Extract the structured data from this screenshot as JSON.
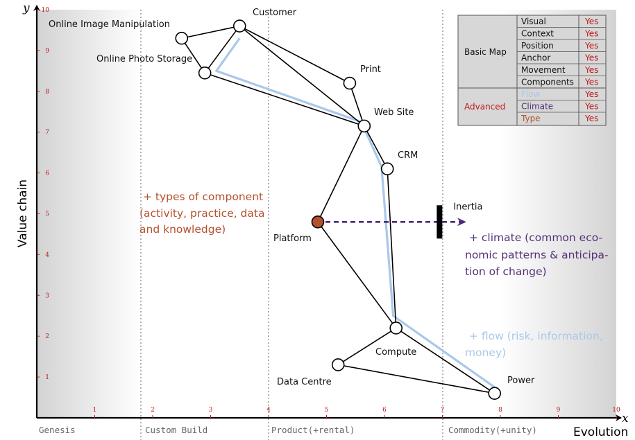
{
  "axes": {
    "y_symbol": "y",
    "x_symbol": "x",
    "y_title": "Value chain",
    "x_title": "Evolution",
    "x_ticks": [
      "1",
      "2",
      "3",
      "4",
      "5",
      "6",
      "7",
      "8",
      "9",
      "10"
    ],
    "y_ticks": [
      "1",
      "2",
      "3",
      "4",
      "5",
      "6",
      "7",
      "8",
      "9",
      "10"
    ]
  },
  "stages": [
    "Genesis",
    "Custom Build",
    "Product(+rental)",
    "Commodity(+unity)"
  ],
  "nodes": [
    {
      "id": "customer",
      "label": "Customer",
      "x": 3.5,
      "y": 9.6
    },
    {
      "id": "online_image_manipulation",
      "label": "Online Image Manipulation",
      "x": 2.5,
      "y": 9.3
    },
    {
      "id": "online_photo_storage",
      "label": "Online Photo Storage",
      "x": 2.9,
      "y": 8.45
    },
    {
      "id": "print",
      "label": "Print",
      "x": 5.4,
      "y": 8.2
    },
    {
      "id": "web_site",
      "label": "Web Site",
      "x": 5.65,
      "y": 7.15
    },
    {
      "id": "crm",
      "label": "CRM",
      "x": 6.05,
      "y": 6.1
    },
    {
      "id": "platform",
      "label": "Platform",
      "x": 4.85,
      "y": 4.8,
      "highlight": true
    },
    {
      "id": "compute",
      "label": "Compute",
      "x": 6.2,
      "y": 2.2
    },
    {
      "id": "data_centre",
      "label": "Data Centre",
      "x": 5.2,
      "y": 1.3
    },
    {
      "id": "power",
      "label": "Power",
      "x": 7.9,
      "y": 0.6
    }
  ],
  "links": [
    [
      "customer",
      "online_image_manipulation"
    ],
    [
      "customer",
      "online_photo_storage"
    ],
    [
      "online_image_manipulation",
      "online_photo_storage"
    ],
    [
      "customer",
      "print"
    ],
    [
      "customer",
      "web_site"
    ],
    [
      "online_photo_storage",
      "web_site"
    ],
    [
      "print",
      "web_site"
    ],
    [
      "web_site",
      "crm"
    ],
    [
      "web_site",
      "platform"
    ],
    [
      "platform",
      "compute"
    ],
    [
      "crm",
      "compute"
    ],
    [
      "compute",
      "power"
    ],
    [
      "compute",
      "data_centre"
    ],
    [
      "data_centre",
      "power"
    ]
  ],
  "flow_path": [
    [
      3.5,
      9.3
    ],
    [
      3.1,
      8.5
    ],
    [
      5.6,
      7.25
    ],
    [
      5.95,
      6.15
    ],
    [
      6.15,
      2.5
    ],
    [
      7.9,
      0.75
    ]
  ],
  "inertia": {
    "label": "Inertia",
    "x": 6.95,
    "y": 4.8
  },
  "movement": {
    "from": "platform",
    "to_x": 7.4,
    "y": 4.8
  },
  "annotations": {
    "types": [
      "+ types of component",
      "(activity, practice, data",
      "and knowledge)"
    ],
    "climate": [
      "+ climate (common eco-",
      "nomic patterns & anticipa-",
      "tion of change)"
    ],
    "flow": [
      "+ flow (risk, information,",
      "money)"
    ]
  },
  "legend_table": {
    "groups": [
      {
        "name": "Basic Map",
        "rows": [
          {
            "feature": "Visual",
            "value": "Yes"
          },
          {
            "feature": "Context",
            "value": "Yes"
          },
          {
            "feature": "Position",
            "value": "Yes"
          },
          {
            "feature": "Anchor",
            "value": "Yes"
          },
          {
            "feature": "Movement",
            "value": "Yes"
          },
          {
            "feature": "Components",
            "value": "Yes"
          }
        ]
      },
      {
        "name": "Advanced",
        "rows": [
          {
            "feature": "Flow",
            "value": "Yes"
          },
          {
            "feature": "Climate",
            "value": "Yes"
          },
          {
            "feature": "Type",
            "value": "Yes"
          }
        ]
      }
    ]
  },
  "colors": {
    "node_fill": "#ffffff",
    "platform_fill": "#b5502c",
    "flow_line": "#a9c8ea",
    "movement_arrow": "#4a2a7a",
    "types_text": "#b5502c",
    "climate_text": "#55307a",
    "flow_text": "#a9c8ea",
    "yes_text": "#c01818",
    "advanced_text": "#c01818",
    "table_bg": "#d7d7d7",
    "tick_red": "#c01818"
  }
}
